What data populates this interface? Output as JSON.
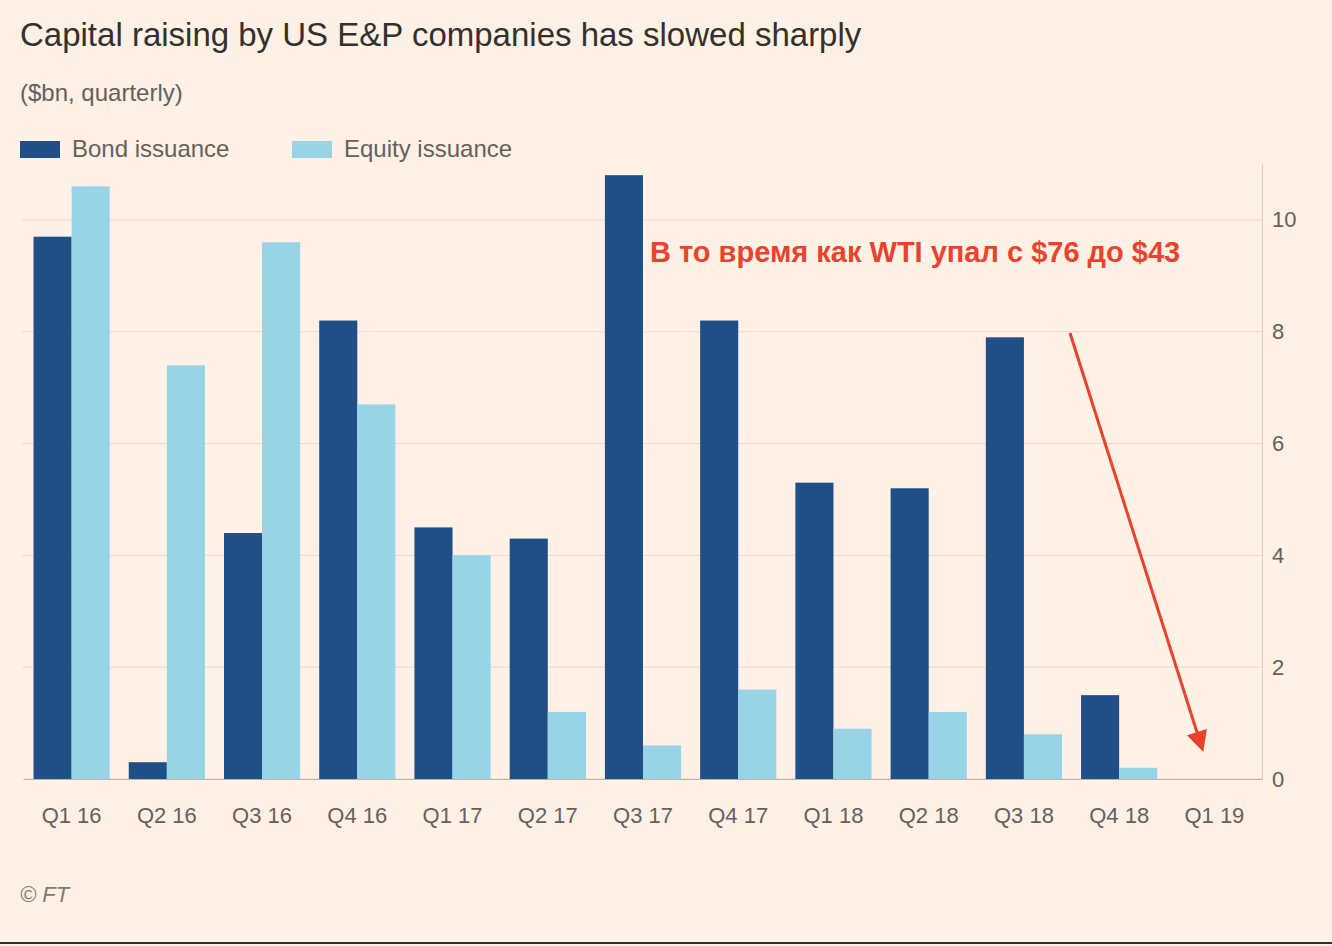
{
  "chart_data": {
    "type": "bar",
    "title": "Capital raising by US E&P companies has slowed sharply",
    "subtitle": "($bn, quarterly)",
    "annotations": [
      {
        "text": "В то время как WTI упал с  $76 до $43"
      }
    ],
    "source": "© FT",
    "categories": [
      "Q1 16",
      "Q2 16",
      "Q3 16",
      "Q4 16",
      "Q1 17",
      "Q2 17",
      "Q3 17",
      "Q4 17",
      "Q1 18",
      "Q2 18",
      "Q3 18",
      "Q4 18",
      "Q1 19"
    ],
    "series": [
      {
        "name": "Bond issuance",
        "color": "#1f4f86",
        "values": [
          9.7,
          0.3,
          4.4,
          8.2,
          4.5,
          4.3,
          10.8,
          8.2,
          5.3,
          5.2,
          7.9,
          1.5,
          null
        ]
      },
      {
        "name": "Equity issuance",
        "color": "#98d3e8",
        "values": [
          10.6,
          7.4,
          9.6,
          6.7,
          4.0,
          1.2,
          0.6,
          1.6,
          0.9,
          1.2,
          0.8,
          0.2,
          null
        ]
      }
    ],
    "ylim": [
      0,
      11
    ],
    "yticks": [
      0,
      2,
      4,
      6,
      8,
      10
    ],
    "grid": true,
    "legend": "top-left"
  }
}
